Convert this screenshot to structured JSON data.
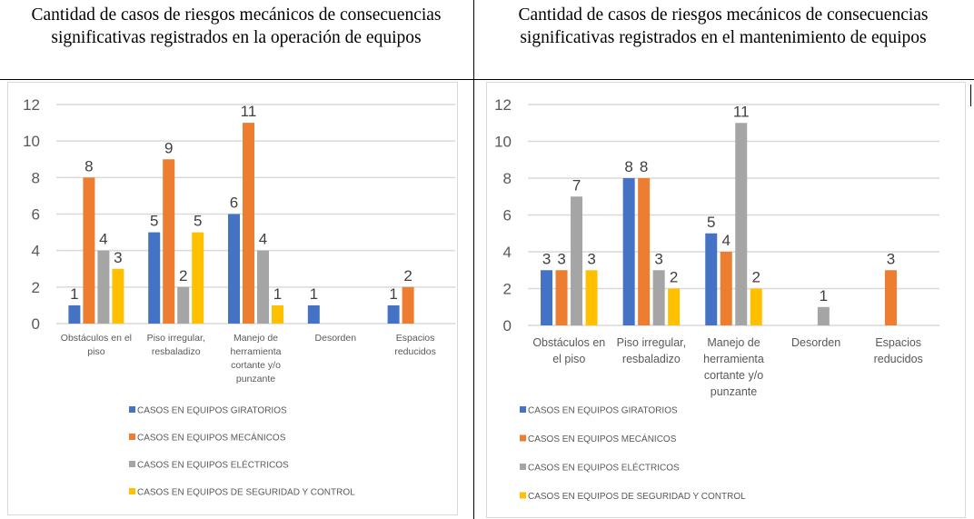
{
  "document": {
    "left_title": "Cantidad de casos de riesgos mecánicos de consecuencias significativas registrados en la operación de equipos",
    "right_title": "Cantidad de casos de riesgos mecánicos de consecuencias significativas registrados en el mantenimiento de equipos"
  },
  "chart_data": [
    {
      "type": "bar",
      "title": "",
      "xlabel": "",
      "ylabel": "",
      "ylim": [
        0,
        12
      ],
      "yticks": [
        0,
        2,
        4,
        6,
        8,
        10,
        12
      ],
      "grid": true,
      "legend_position": "bottom",
      "categories": [
        "Obstáculos en el piso",
        "Piso irregular, resbaladizo",
        "Manejo de herramienta cortante y/o punzante",
        "Desorden",
        "Espacios reducidos"
      ],
      "series": [
        {
          "name": "CASOS EN EQUIPOS GIRATORIOS",
          "color": "#4472C4",
          "values": [
            1,
            5,
            6,
            1,
            1
          ]
        },
        {
          "name": "CASOS EN EQUIPOS MECÁNICOS",
          "color": "#ED7D31",
          "values": [
            8,
            9,
            11,
            null,
            2
          ]
        },
        {
          "name": "CASOS EN EQUIPOS ELÉCTRICOS",
          "color": "#A5A5A5",
          "values": [
            4,
            2,
            4,
            null,
            null
          ]
        },
        {
          "name": "CASOS EN EQUIPOS DE SEGURIDAD Y CONTROL",
          "color": "#FFC000",
          "values": [
            3,
            5,
            1,
            null,
            null
          ]
        }
      ]
    },
    {
      "type": "bar",
      "title": "",
      "xlabel": "",
      "ylabel": "",
      "ylim": [
        0,
        12
      ],
      "yticks": [
        0,
        2,
        4,
        6,
        8,
        10,
        12
      ],
      "grid": true,
      "legend_position": "bottom",
      "categories": [
        "Obstáculos en el piso",
        "Piso irregular, resbaladizo",
        "Manejo de herramienta cortante y/o punzante",
        "Desorden",
        "Espacios reducidos"
      ],
      "series": [
        {
          "name": "CASOS EN EQUIPOS GIRATORIOS",
          "color": "#4472C4",
          "values": [
            3,
            8,
            5,
            null,
            null
          ]
        },
        {
          "name": "CASOS EN EQUIPOS MECÁNICOS",
          "color": "#ED7D31",
          "values": [
            3,
            8,
            4,
            null,
            3
          ]
        },
        {
          "name": "CASOS EN EQUIPOS ELÉCTRICOS",
          "color": "#A5A5A5",
          "values": [
            7,
            3,
            11,
            1,
            null
          ]
        },
        {
          "name": "CASOS EN EQUIPOS DE SEGURIDAD Y CONTROL",
          "color": "#FFC000",
          "values": [
            3,
            2,
            2,
            null,
            null
          ]
        }
      ]
    }
  ]
}
